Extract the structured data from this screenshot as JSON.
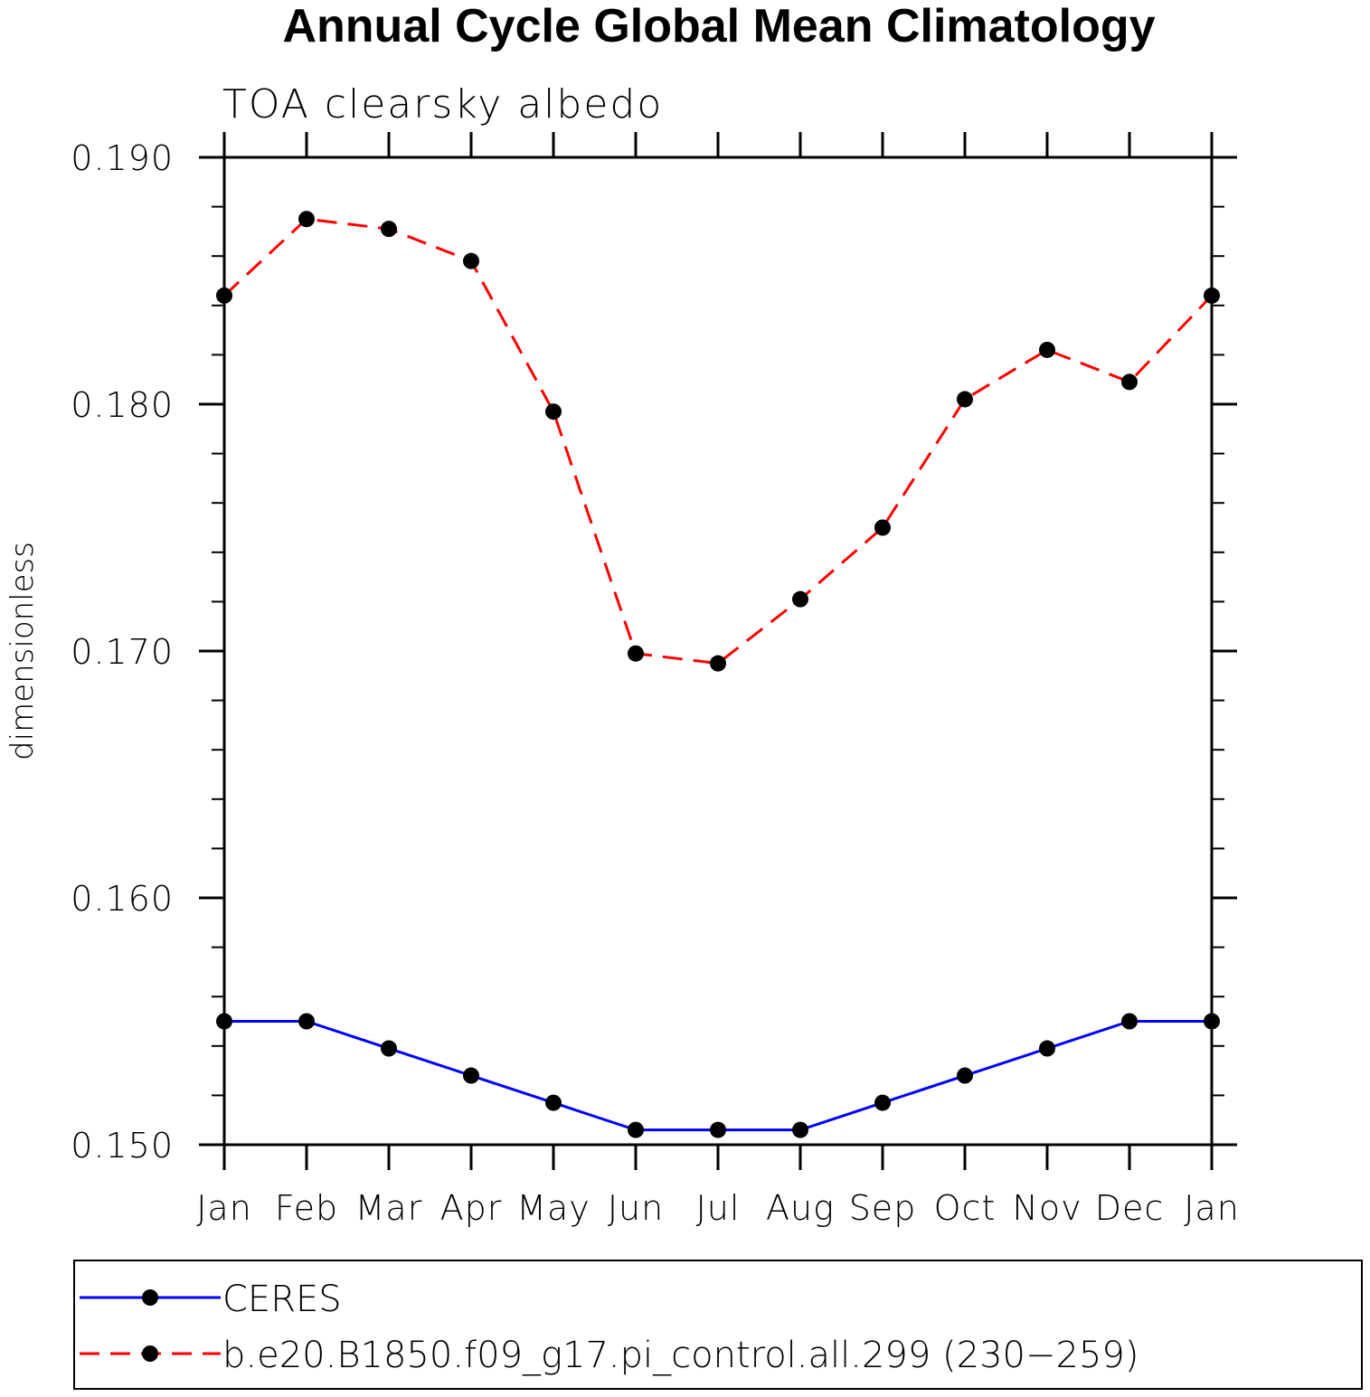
{
  "chart_data": {
    "type": "line",
    "title": "Annual Cycle Global Mean Climatology",
    "subtitle": "TOA clearsky albedo",
    "ylabel": "dimensionless",
    "xlabel": "",
    "categories": [
      "Jan",
      "Feb",
      "Mar",
      "Apr",
      "May",
      "Jun",
      "Jul",
      "Aug",
      "Sep",
      "Oct",
      "Nov",
      "Dec",
      "Jan"
    ],
    "ylim": [
      0.15,
      0.19
    ],
    "yticks": [
      0.15,
      0.16,
      0.17,
      0.18,
      0.19
    ],
    "ytick_labels": [
      "0.150",
      "0.160",
      "0.170",
      "0.180",
      "0.190"
    ],
    "y_minor_step": 0.002,
    "series": [
      {
        "name": "CERES",
        "color": "#0000ff",
        "dash": "solid",
        "marker": "dot",
        "values": [
          0.155,
          0.155,
          0.1539,
          0.1528,
          0.1517,
          0.1506,
          0.1506,
          0.1506,
          0.1517,
          0.1528,
          0.1539,
          0.155,
          0.155
        ]
      },
      {
        "name": "b.e20.B1850.f09_g17.pi_control.all.299 (230−259)",
        "color": "#ff0000",
        "dash": "dashed",
        "marker": "dot",
        "values": [
          0.1844,
          0.1875,
          0.1871,
          0.1858,
          0.1797,
          0.1699,
          0.1695,
          0.1721,
          0.175,
          0.1802,
          0.1822,
          0.1809,
          0.1844
        ]
      }
    ],
    "legend": {
      "position": "bottom"
    }
  }
}
